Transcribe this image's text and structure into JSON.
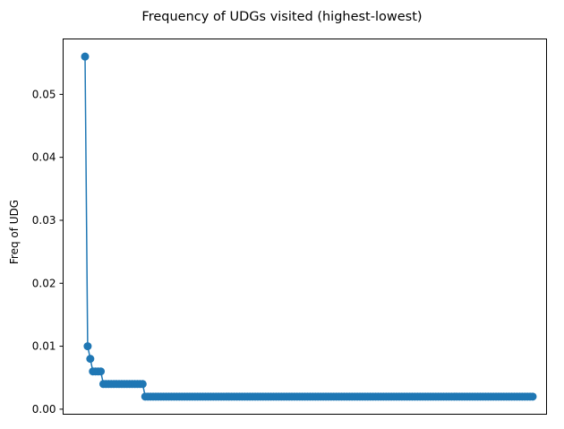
{
  "chart_data": {
    "type": "line",
    "title": "Frequency of UDGs visited (highest-lowest)",
    "xlabel": "",
    "ylabel": "Freq of UDG",
    "xticks_visible": false,
    "ylim": [
      -0.0008,
      0.0588
    ],
    "y_ticks": [
      {
        "value": 0.0,
        "label": "0.00"
      },
      {
        "value": 0.01,
        "label": "0.01"
      },
      {
        "value": 0.02,
        "label": "0.02"
      },
      {
        "value": 0.03,
        "label": "0.03"
      },
      {
        "value": 0.04,
        "label": "0.04"
      },
      {
        "value": 0.05,
        "label": "0.05"
      }
    ],
    "grid": false,
    "legend": "none",
    "marker": "circle",
    "series": [
      {
        "color": "#1f77b4",
        "segments": [
          {
            "count": 1,
            "value": 0.056
          },
          {
            "count": 1,
            "value": 0.01
          },
          {
            "count": 1,
            "value": 0.008
          },
          {
            "count": 4,
            "value": 0.006
          },
          {
            "count": 16,
            "value": 0.004
          },
          {
            "count": 149,
            "value": 0.002
          }
        ]
      }
    ]
  }
}
